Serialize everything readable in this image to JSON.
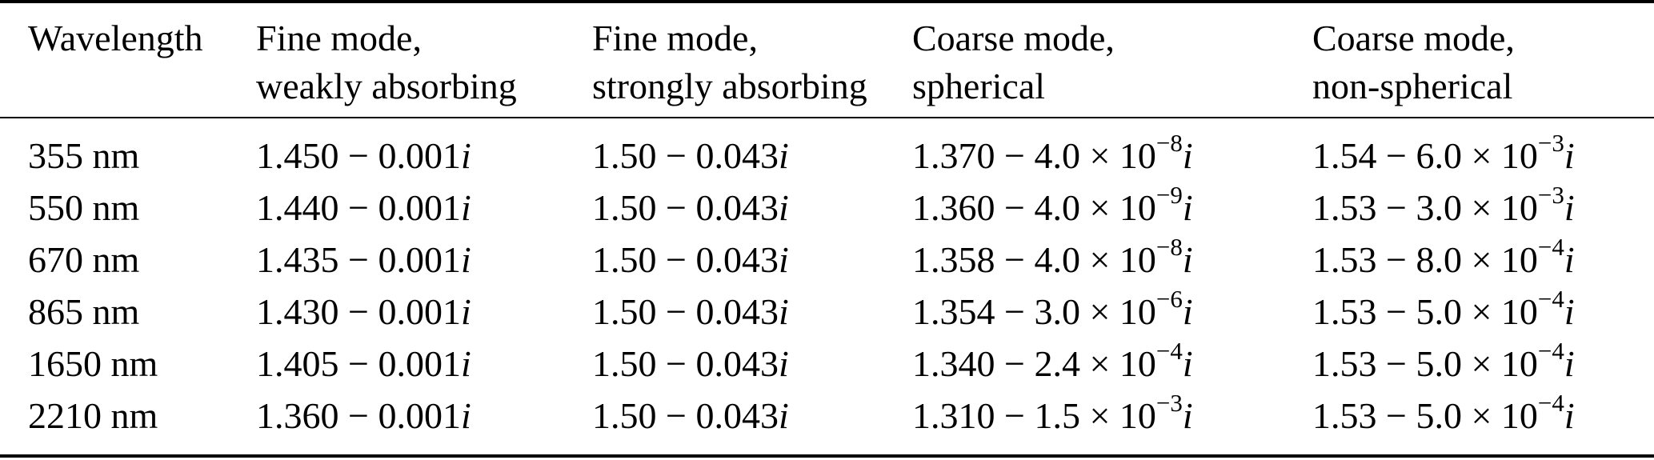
{
  "page": {
    "colors": {
      "background": "#ffffff",
      "text": "#000000",
      "rule": "#000000"
    }
  },
  "table": {
    "headers": [
      {
        "id": "wavelength",
        "line1": "Wavelength",
        "line2": ""
      },
      {
        "id": "fine-weak",
        "line1": "Fine mode,",
        "line2": "weakly absorbing"
      },
      {
        "id": "fine-strong",
        "line1": "Fine mode,",
        "line2": "strongly absorbing"
      },
      {
        "id": "coarse-spherical",
        "line1": "Coarse mode,",
        "line2": "spherical"
      },
      {
        "id": "coarse-nonspherical",
        "line1": "Coarse mode,",
        "line2": "non-spherical"
      }
    ],
    "rows": [
      {
        "wavelength": "355 nm",
        "cells": [
          {
            "base": "1.450 − 0.001",
            "sup": "",
            "suffix": "i"
          },
          {
            "base": "1.50 − 0.043",
            "sup": "",
            "suffix": "i"
          },
          {
            "base": "1.370 − 4.0 × 10",
            "sup": "−8",
            "suffix": "i"
          },
          {
            "base": "1.54 − 6.0 × 10",
            "sup": "−3",
            "suffix": "i"
          }
        ]
      },
      {
        "wavelength": "550 nm",
        "cells": [
          {
            "base": "1.440 − 0.001",
            "sup": "",
            "suffix": "i"
          },
          {
            "base": "1.50 − 0.043",
            "sup": "",
            "suffix": "i"
          },
          {
            "base": "1.360 − 4.0 × 10",
            "sup": "−9",
            "suffix": "i"
          },
          {
            "base": "1.53 − 3.0 × 10",
            "sup": "−3",
            "suffix": "i"
          }
        ]
      },
      {
        "wavelength": "670 nm",
        "cells": [
          {
            "base": "1.435 − 0.001",
            "sup": "",
            "suffix": "i"
          },
          {
            "base": "1.50 − 0.043",
            "sup": "",
            "suffix": "i"
          },
          {
            "base": "1.358 − 4.0 × 10",
            "sup": "−8",
            "suffix": "i"
          },
          {
            "base": "1.53 − 8.0 × 10",
            "sup": "−4",
            "suffix": "i"
          }
        ]
      },
      {
        "wavelength": "865 nm",
        "cells": [
          {
            "base": "1.430 − 0.001",
            "sup": "",
            "suffix": "i"
          },
          {
            "base": "1.50 − 0.043",
            "sup": "",
            "suffix": "i"
          },
          {
            "base": "1.354 − 3.0 × 10",
            "sup": "−6",
            "suffix": "i"
          },
          {
            "base": "1.53 − 5.0 × 10",
            "sup": "−4",
            "suffix": "i"
          }
        ]
      },
      {
        "wavelength": "1650 nm",
        "cells": [
          {
            "base": "1.405 − 0.001",
            "sup": "",
            "suffix": "i"
          },
          {
            "base": "1.50 − 0.043",
            "sup": "",
            "suffix": "i"
          },
          {
            "base": "1.340 − 2.4 × 10",
            "sup": "−4",
            "suffix": "i"
          },
          {
            "base": "1.53 − 5.0 × 10",
            "sup": "−4",
            "suffix": "i"
          }
        ]
      },
      {
        "wavelength": "2210 nm",
        "cells": [
          {
            "base": "1.360 − 0.001",
            "sup": "",
            "suffix": "i"
          },
          {
            "base": "1.50 − 0.043",
            "sup": "",
            "suffix": "i"
          },
          {
            "base": "1.310 − 1.5 × 10",
            "sup": "−3",
            "suffix": "i"
          },
          {
            "base": "1.53 − 5.0 × 10",
            "sup": "−4",
            "suffix": "i"
          }
        ]
      }
    ]
  }
}
